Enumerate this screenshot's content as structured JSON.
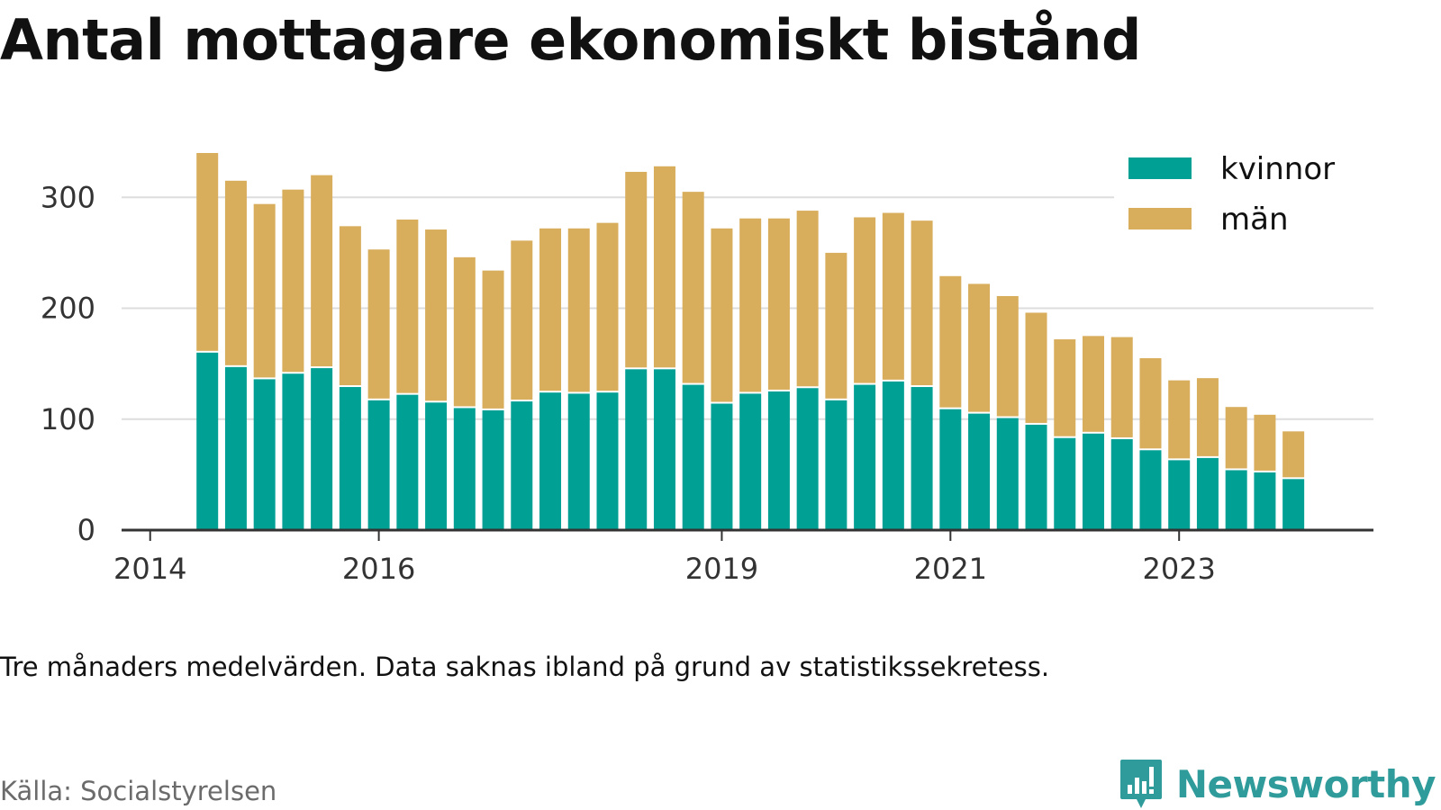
{
  "title": "Antal mottagare ekonomiskt bistånd",
  "note": "Tre månaders medelvärden. Data saknas ibland på grund av statistikssekretess.",
  "source": "Källa: Socialstyrelsen",
  "brand": {
    "name": "Newsworthy",
    "icon": "newsworthy-logo-icon",
    "color": "#2f9b9a"
  },
  "colors": {
    "kvinnor": "#00a095",
    "man": "#d8ad5c",
    "grid": "#dddddd",
    "axis": "#333333"
  },
  "chart_data": {
    "type": "bar",
    "stacked": true,
    "title": "Antal mottagare ekonomiskt bistånd",
    "xlabel": "",
    "ylabel": "",
    "ylim": [
      0,
      340
    ],
    "yticks": [
      0,
      100,
      200,
      300
    ],
    "xlim": [
      2013.75,
      2024.7
    ],
    "xticks": [
      2014,
      2016,
      2019,
      2021,
      2023
    ],
    "grid": true,
    "legend_position": "top-right",
    "x": [
      2014.5,
      2014.75,
      2015.0,
      2015.25,
      2015.5,
      2015.75,
      2016.0,
      2016.25,
      2016.5,
      2016.75,
      2017.0,
      2017.25,
      2017.5,
      2017.75,
      2018.0,
      2018.25,
      2018.5,
      2018.75,
      2019.0,
      2019.25,
      2019.5,
      2019.75,
      2020.0,
      2020.25,
      2020.5,
      2020.75,
      2021.0,
      2021.25,
      2021.5,
      2021.75,
      2022.0,
      2022.25,
      2022.5,
      2022.75,
      2023.0,
      2023.25,
      2023.5,
      2023.75,
      2024.0
    ],
    "series": [
      {
        "name": "kvinnor",
        "color": "#00a095",
        "values": [
          160,
          147,
          136,
          141,
          146,
          129,
          117,
          122,
          115,
          110,
          108,
          116,
          124,
          123,
          124,
          145,
          145,
          131,
          114,
          123,
          125,
          128,
          117,
          131,
          134,
          129,
          109,
          105,
          101,
          95,
          83,
          87,
          82,
          72,
          63,
          65,
          54,
          52,
          46
        ]
      },
      {
        "name": "män",
        "color": "#d8ad5c",
        "values": [
          180,
          168,
          158,
          166,
          174,
          145,
          136,
          158,
          156,
          136,
          126,
          145,
          148,
          149,
          153,
          178,
          183,
          174,
          158,
          158,
          156,
          160,
          133,
          151,
          152,
          150,
          120,
          117,
          110,
          101,
          89,
          88,
          92,
          83,
          72,
          72,
          57,
          52,
          43
        ]
      }
    ]
  }
}
